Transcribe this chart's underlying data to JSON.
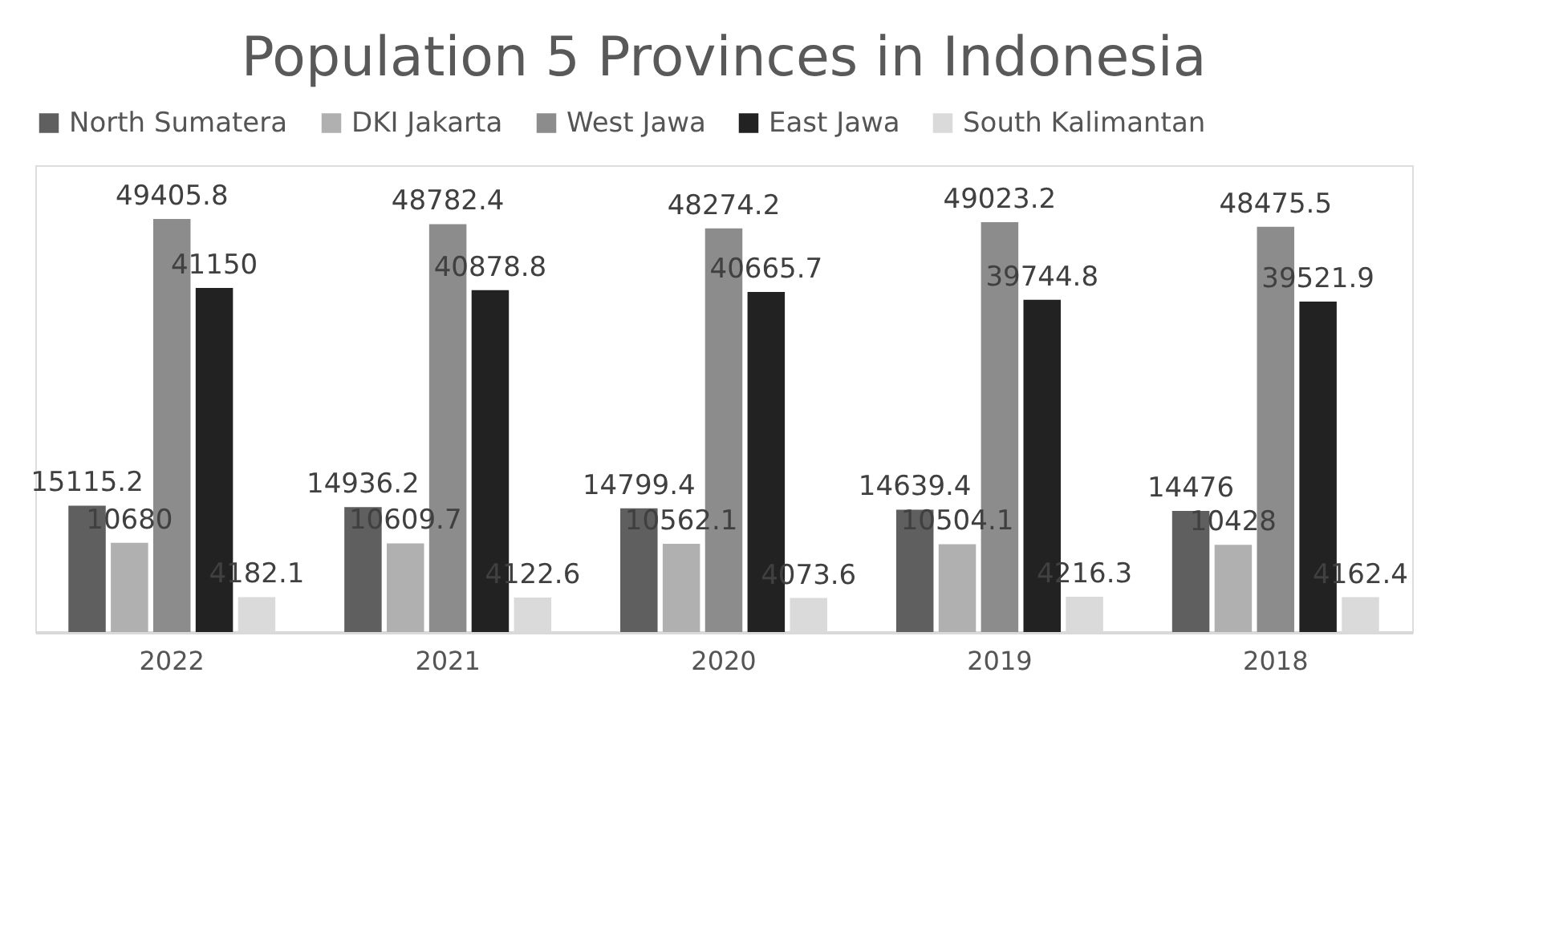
{
  "chart_data": {
    "type": "bar",
    "title": "Population 5 Provinces in Indonesia",
    "categories": [
      "2022",
      "2021",
      "2020",
      "2019",
      "2018"
    ],
    "series": [
      {
        "name": "North Sumatera",
        "color": "#5f5f5f",
        "values": [
          15115.2,
          14936.2,
          14799.4,
          14639.4,
          14476
        ]
      },
      {
        "name": "DKI Jakarta",
        "color": "#b0b0b0",
        "values": [
          10680,
          10609.7,
          10562.1,
          10504.1,
          10428
        ]
      },
      {
        "name": "West Jawa",
        "color": "#8c8c8c",
        "values": [
          49405.8,
          48782.4,
          48274.2,
          49023.2,
          48475.5
        ]
      },
      {
        "name": "East Jawa",
        "color": "#222222",
        "values": [
          41150,
          40878.8,
          40665.7,
          39744.8,
          39521.9
        ]
      },
      {
        "name": "South Kalimantan",
        "color": "#dadada",
        "values": [
          4182.1,
          4122.6,
          4073.6,
          4216.3,
          4162.4
        ]
      }
    ],
    "data_labels": true,
    "legend": "top",
    "grid": false
  }
}
